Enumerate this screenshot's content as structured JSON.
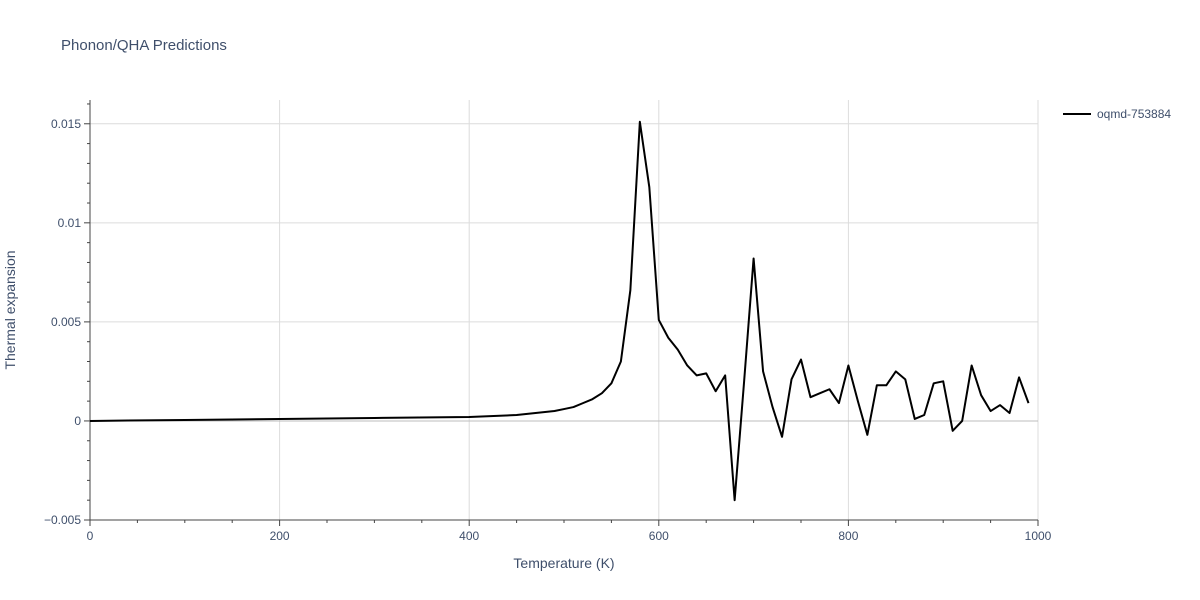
{
  "chart_data": {
    "type": "line",
    "title": "Phonon/QHA Predictions",
    "xlabel": "Temperature (K)",
    "ylabel": "Thermal expansion",
    "xlim": [
      0,
      1000
    ],
    "ylim": [
      -0.005,
      0.0162
    ],
    "x_ticks": [
      0,
      200,
      400,
      600,
      800,
      1000
    ],
    "x_tick_labels": [
      "0",
      "200",
      "400",
      "600",
      "800",
      "1000"
    ],
    "y_ticks": [
      -0.005,
      0,
      0.005,
      0.01,
      0.015
    ],
    "y_tick_labels": [
      "−0.005",
      "0",
      "0.005",
      "0.01",
      "0.015"
    ],
    "grid": true,
    "legend_position": "top-right",
    "series": [
      {
        "name": "oqmd-753884",
        "color": "#000000",
        "x": [
          0,
          100,
          200,
          300,
          400,
          450,
          470,
          490,
          500,
          510,
          520,
          530,
          540,
          550,
          560,
          570,
          580,
          590,
          600,
          610,
          620,
          630,
          640,
          650,
          660,
          670,
          680,
          690,
          700,
          710,
          720,
          730,
          740,
          750,
          760,
          770,
          780,
          790,
          800,
          810,
          820,
          830,
          840,
          850,
          860,
          870,
          880,
          890,
          900,
          910,
          920,
          930,
          940,
          950,
          960,
          970,
          980,
          990
        ],
        "y": [
          0,
          5e-05,
          0.0001,
          0.00015,
          0.0002,
          0.0003,
          0.0004,
          0.0005,
          0.0006,
          0.0007,
          0.0009,
          0.0011,
          0.0014,
          0.0019,
          0.003,
          0.0066,
          0.0151,
          0.0118,
          0.0051,
          0.0042,
          0.0036,
          0.0028,
          0.0023,
          0.0024,
          0.0015,
          0.0023,
          -0.004,
          0.002,
          0.0082,
          0.0025,
          0.0007,
          -0.0008,
          0.0021,
          0.0031,
          0.0012,
          0.0014,
          0.0016,
          0.0009,
          0.0028,
          0.001,
          -0.0007,
          0.0018,
          0.0018,
          0.0025,
          0.0021,
          0.0001,
          0.0003,
          0.0019,
          0.002,
          -0.0005,
          0.0,
          0.0028,
          0.0013,
          0.0005,
          0.0008,
          0.0004,
          0.0022,
          0.0009
        ]
      }
    ]
  }
}
